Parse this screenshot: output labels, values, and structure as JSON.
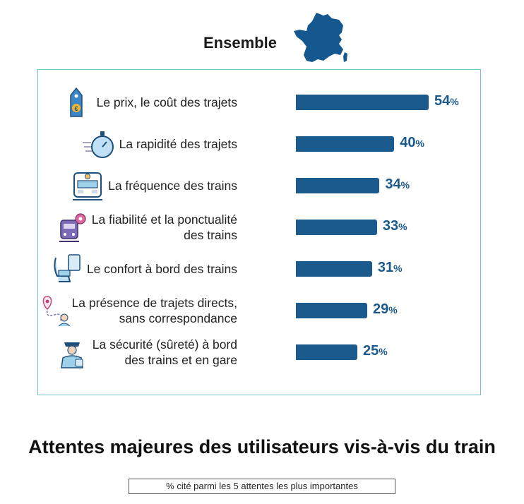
{
  "header": {
    "segment_label": "Ensemble"
  },
  "colors": {
    "bar": "#1a5a8c",
    "value_text": "#1a5a8c",
    "frame": "#6ec6c0",
    "map": "#15578f"
  },
  "chart_data": {
    "type": "bar",
    "orientation": "horizontal",
    "title": "Attentes majeures des utilisateurs vis-à-vis du train",
    "subtitle": "% cité parmi les 5 attentes les plus importantes",
    "categories": [
      "Le prix, le coût des trajets",
      "La rapidité des trajets",
      "La  fréquence des trains",
      "La fiabilité et la ponctualité des trains",
      "Le confort à bord des trains",
      "La présence de trajets directs, sans correspondance",
      "La sécurité (sûreté) à bord des trains et en gare"
    ],
    "category_lines": [
      [
        "Le prix, le coût des trajets"
      ],
      [
        "La rapidité des trajets"
      ],
      [
        "La  fréquence des trains"
      ],
      [
        "La fiabilité et la ponctualité",
        "des trains"
      ],
      [
        "Le confort à bord des trains"
      ],
      [
        "La présence de trajets directs,",
        "sans correspondance"
      ],
      [
        "La sécurité (sûreté) à bord",
        "des trains et en gare"
      ]
    ],
    "icons": [
      "price-tag-icon",
      "stopwatch-icon",
      "train-front-icon",
      "gear-train-icon",
      "train-seat-icon",
      "route-pin-icon",
      "security-agent-icon"
    ],
    "values": [
      54,
      40,
      34,
      33,
      31,
      29,
      25
    ],
    "unit": "%",
    "xlim": [
      0,
      54
    ],
    "grid": false,
    "legend": "none"
  },
  "footer": {
    "title": "Attentes majeures des utilisateurs vis-à-vis du train",
    "note": "% cité parmi les 5 attentes les plus importantes"
  }
}
